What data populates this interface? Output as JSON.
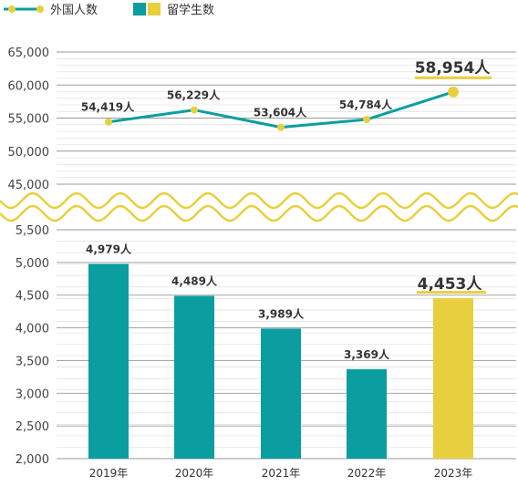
{
  "colors": {
    "teal": "#0a9ea0",
    "yellow": "#e8cf3e",
    "grid": "#c8c8c8",
    "text": "#333333",
    "axis_text": "#444444"
  },
  "legend": {
    "line_label": "外国人数",
    "bar_label": "留学生数"
  },
  "chart_data": {
    "type": "bar+line",
    "categories": [
      "2019年",
      "2020年",
      "2021年",
      "2022年",
      "2023年"
    ],
    "line_series": {
      "name": "外国人数",
      "values": [
        54419,
        56229,
        53604,
        54784,
        58954
      ],
      "labels": [
        "54,419人",
        "56,229人",
        "53,604人",
        "54,784人",
        "58,954人"
      ],
      "ylim": [
        45000,
        65000
      ],
      "ticks": [
        "45,000",
        "50,000",
        "55,000",
        "60,000",
        "65,000"
      ]
    },
    "bar_series": {
      "name": "留学生数",
      "values": [
        4979,
        4489,
        3989,
        3369,
        4453
      ],
      "labels": [
        "4,979人",
        "4,489人",
        "3,989人",
        "3,369人",
        "4,453人"
      ],
      "ylim": [
        2000,
        5500
      ],
      "ticks": [
        "2,000",
        "2,500",
        "3,000",
        "3,500",
        "4,000",
        "4,500",
        "5,000",
        "5,500"
      ]
    },
    "highlight_index": 4,
    "axis_break": "wavy break between 45,000 and 5,500",
    "grid": true,
    "legend_position": "top-left"
  }
}
